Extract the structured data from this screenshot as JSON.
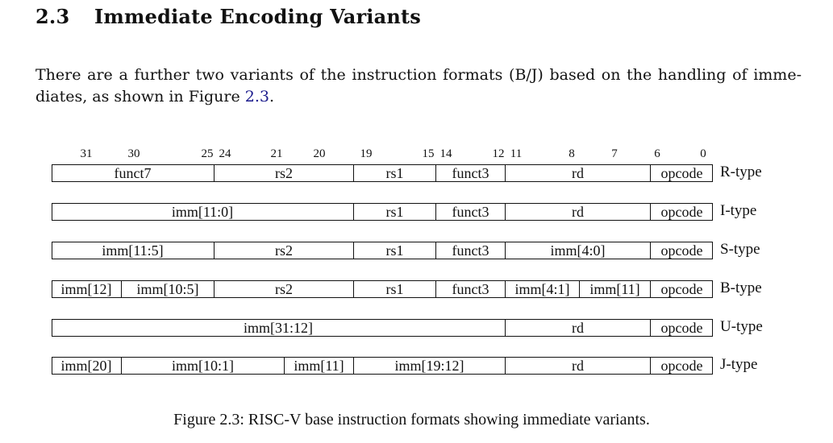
{
  "section": {
    "number": "2.3",
    "title": "Immediate Encoding Variants"
  },
  "paragraph": {
    "line1": "There are a further two variants of the instruction formats (B/J) based on the handling of imme-",
    "line2_text": "diates, as shown in Figure ",
    "line2_ref": "2.3",
    "line2_end": "."
  },
  "figure": {
    "bit_labels": [
      "31",
      "30",
      "25",
      "24",
      "21",
      "20",
      "19",
      "15",
      "14",
      "12",
      "11",
      "8",
      "7",
      "6",
      "0"
    ],
    "formats": [
      {
        "type": "R-type",
        "fields": [
          {
            "label": "funct7"
          },
          {
            "label": "rs2"
          },
          {
            "label": "rs1"
          },
          {
            "label": "funct3"
          },
          {
            "label": "rd"
          },
          {
            "label": "opcode"
          }
        ]
      },
      {
        "type": "I-type",
        "fields": [
          {
            "label": "imm[11:0]"
          },
          {
            "label": "rs1"
          },
          {
            "label": "funct3"
          },
          {
            "label": "rd"
          },
          {
            "label": "opcode"
          }
        ]
      },
      {
        "type": "S-type",
        "fields": [
          {
            "label": "imm[11:5]"
          },
          {
            "label": "rs2"
          },
          {
            "label": "rs1"
          },
          {
            "label": "funct3"
          },
          {
            "label": "imm[4:0]"
          },
          {
            "label": "opcode"
          }
        ]
      },
      {
        "type": "B-type",
        "fields": [
          {
            "label": "imm[12]"
          },
          {
            "label": "imm[10:5]"
          },
          {
            "label": "rs2"
          },
          {
            "label": "rs1"
          },
          {
            "label": "funct3"
          },
          {
            "label": "imm[4:1]"
          },
          {
            "label": "imm[11]"
          },
          {
            "label": "opcode"
          }
        ]
      },
      {
        "type": "U-type",
        "fields": [
          {
            "label": "imm[31:12]"
          },
          {
            "label": "rd"
          },
          {
            "label": "opcode"
          }
        ]
      },
      {
        "type": "J-type",
        "fields": [
          {
            "label": "imm[20]"
          },
          {
            "label": "imm[10:1]"
          },
          {
            "label": "imm[11]"
          },
          {
            "label": "imm[19:12]"
          },
          {
            "label": "rd"
          },
          {
            "label": "opcode"
          }
        ]
      }
    ],
    "caption": "Figure 2.3: RISC-V base instruction formats showing immediate variants."
  }
}
